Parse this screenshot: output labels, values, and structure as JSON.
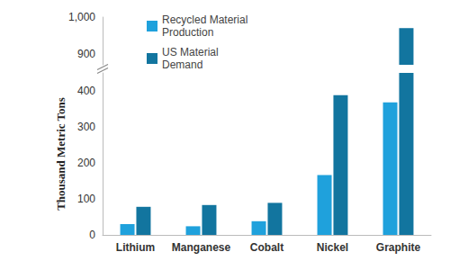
{
  "chart_data": {
    "type": "bar",
    "categories": [
      "Lithium",
      "Manganese",
      "Cobalt",
      "Nickel",
      "Graphite"
    ],
    "series": [
      {
        "name": "Recycled Material Production",
        "color": "#1fa1dc",
        "values": [
          30,
          24,
          38,
          166,
          368
        ]
      },
      {
        "name": "US Material Demand",
        "color": "#12759f",
        "values": [
          78,
          83,
          89,
          388,
          970
        ]
      }
    ],
    "y_label": "Thousand Metric Tons",
    "ylim": [
      0,
      1000
    ],
    "yticks": [
      0,
      100,
      200,
      300,
      400,
      900,
      {
        "value": 1000,
        "label": "1,000"
      }
    ],
    "ybreak": [
      450,
      870
    ],
    "legend": "upper left",
    "grid": false
  }
}
